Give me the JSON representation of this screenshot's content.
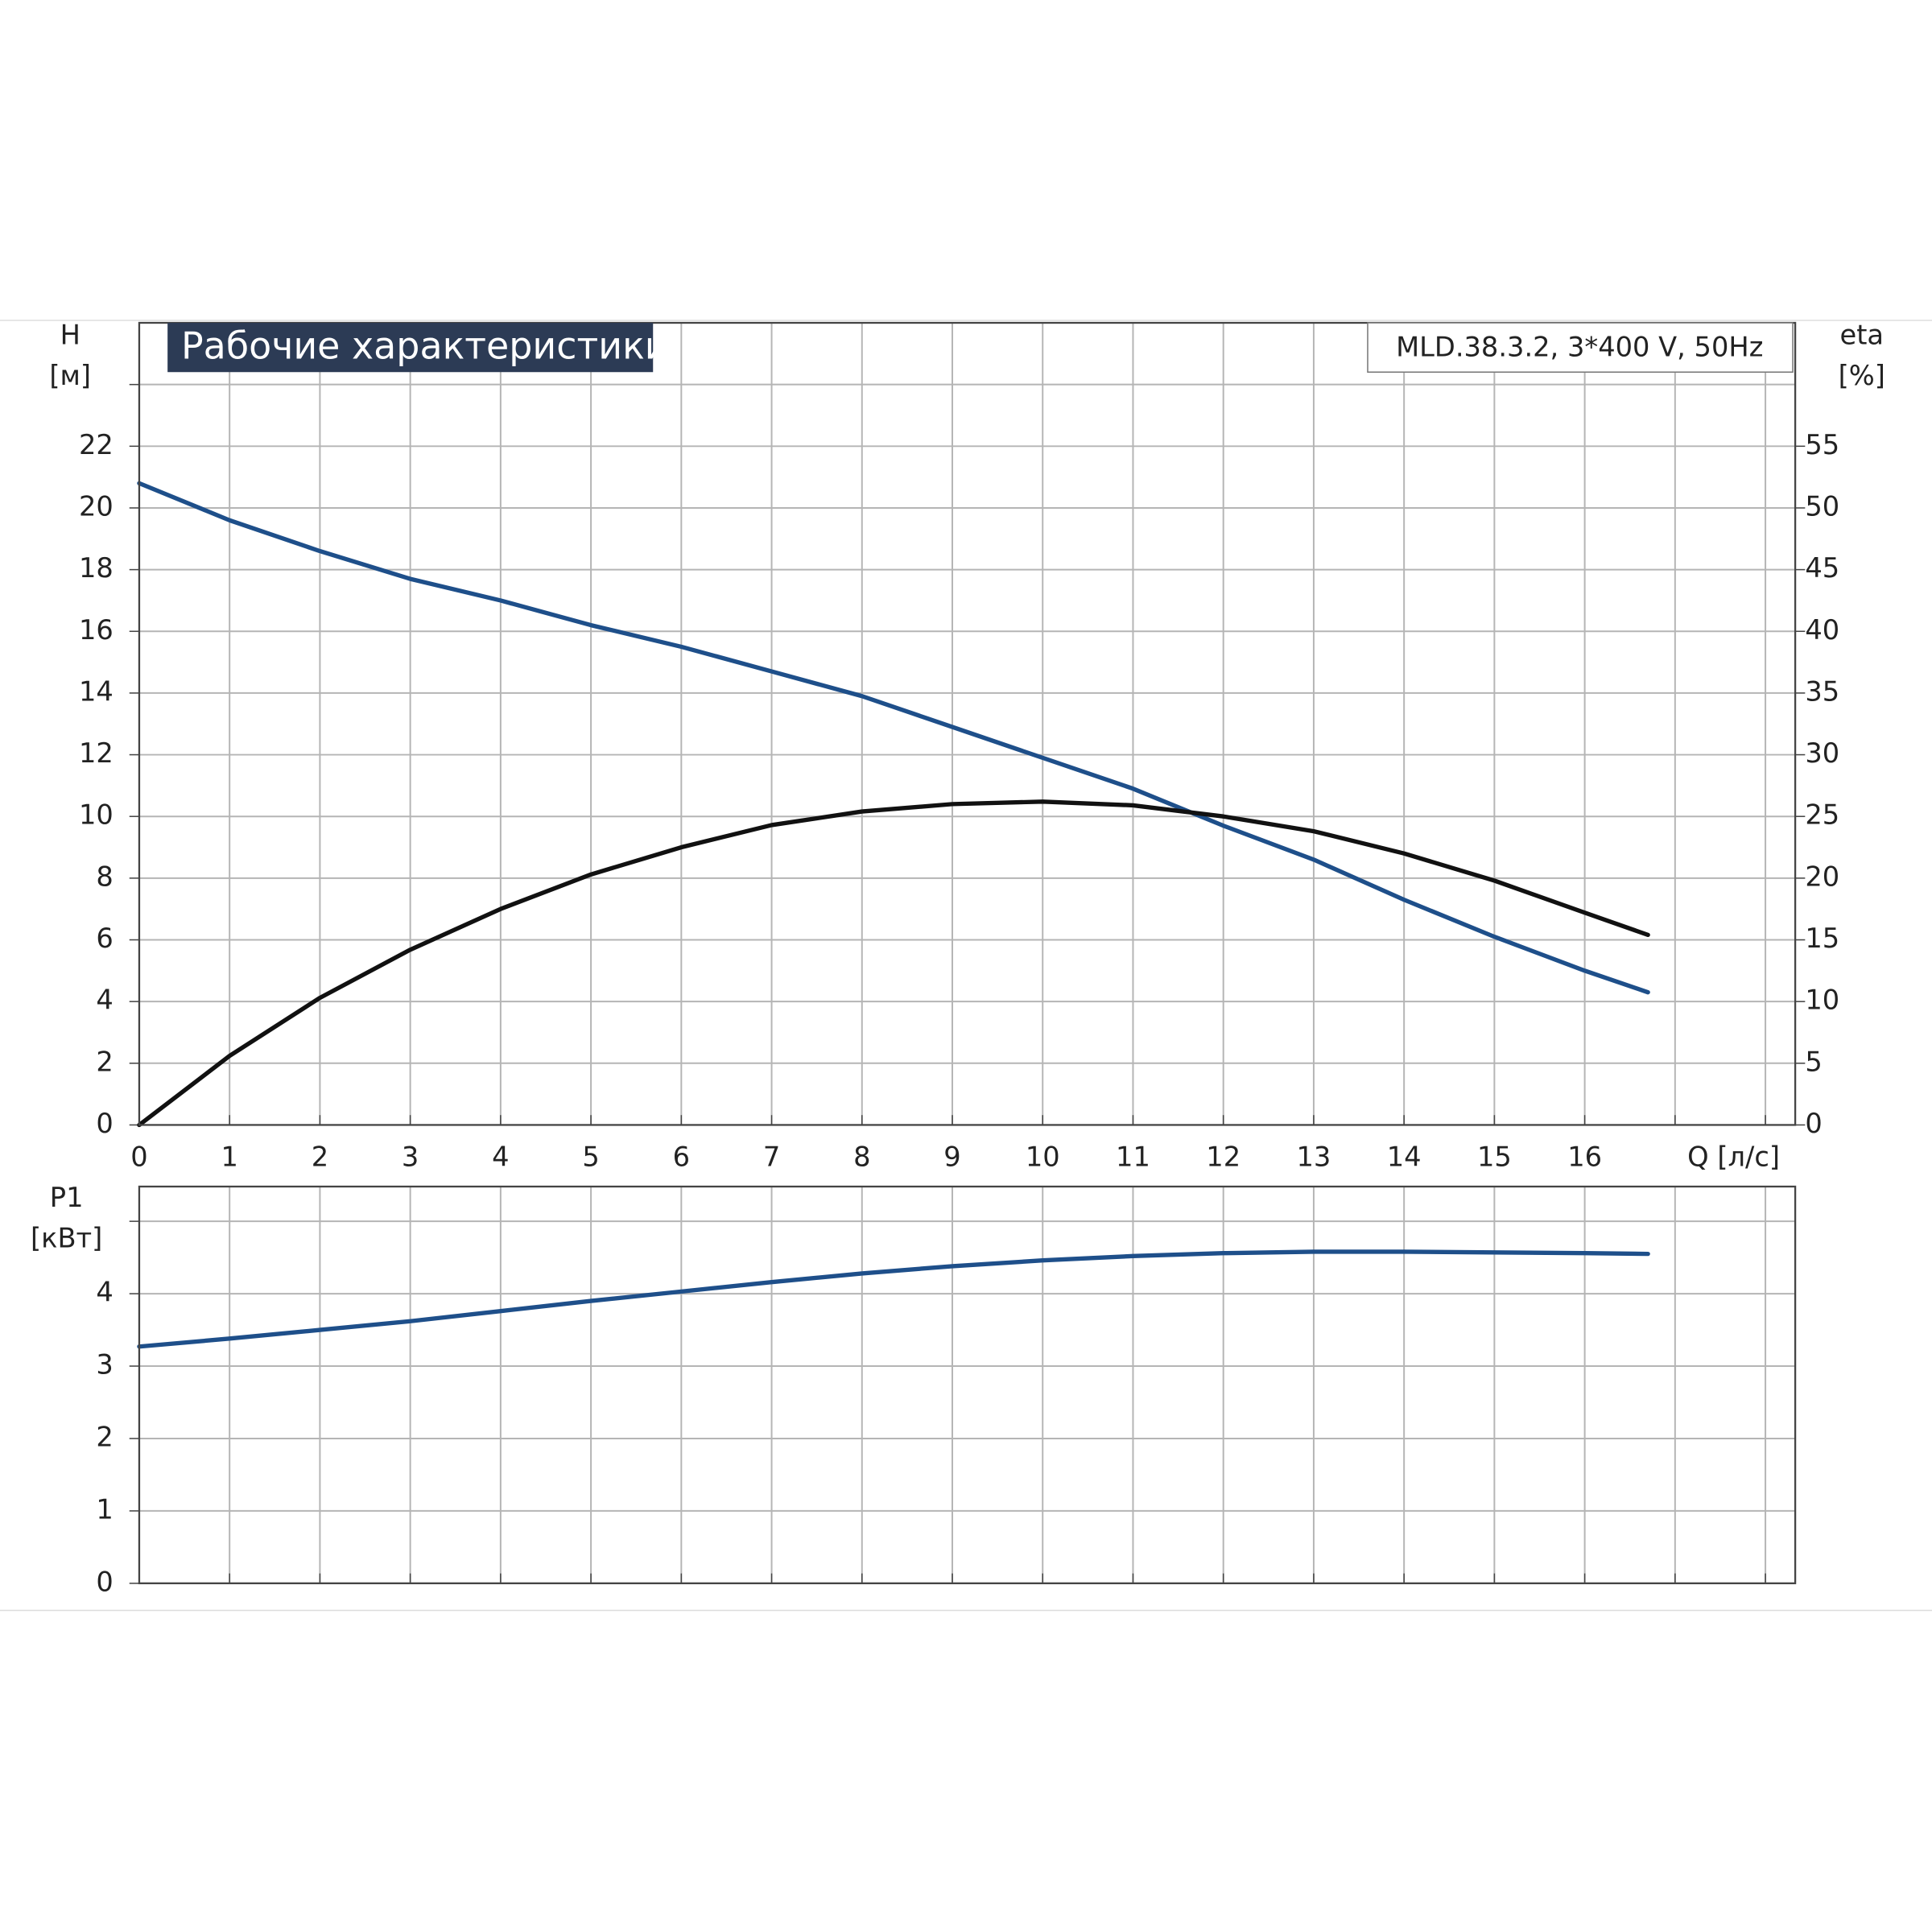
{
  "chart_data": [
    {
      "type": "line",
      "title": "Рабочие характеристики",
      "annotation": "MLD.38.3.2, 3*400 V, 50Hz",
      "ylabel": "H",
      "yunit": "[м]",
      "y2label": "eta",
      "y2unit": "[%]",
      "xlabel": "Q [л/с]",
      "grid": true,
      "x": [
        0,
        1,
        2,
        3,
        4,
        5,
        6,
        7,
        8,
        9,
        10,
        11,
        12,
        13,
        14,
        15,
        16,
        16.7
      ],
      "xlim": [
        0,
        18.33
      ],
      "xticks": [
        0,
        1,
        2,
        3,
        4,
        5,
        6,
        7,
        8,
        9,
        10,
        11,
        12,
        13,
        14,
        15,
        16,
        {
          "value": 17,
          "label": null
        },
        {
          "value": 18,
          "label": null
        }
      ],
      "ylim": [
        0,
        26
      ],
      "yticks": [
        0,
        2,
        4,
        6,
        8,
        10,
        12,
        14,
        16,
        18,
        20,
        22,
        {
          "value": 24,
          "label": null
        }
      ],
      "y2lim": [
        0,
        65
      ],
      "y2ticks": [
        0,
        5,
        10,
        15,
        20,
        25,
        30,
        35,
        40,
        45,
        50,
        55
      ],
      "series": [
        {
          "name": "H",
          "color": "#1e4f8a",
          "values": [
            20.8,
            19.6,
            18.6,
            17.7,
            17.0,
            16.2,
            15.5,
            14.7,
            13.9,
            12.9,
            11.9,
            10.9,
            9.7,
            8.6,
            7.3,
            6.1,
            5.0,
            4.3
          ]
        },
        {
          "name": "eta",
          "color": "#111111",
          "axis": "y2",
          "values": [
            0,
            5.6,
            10.3,
            14.2,
            17.5,
            20.3,
            22.5,
            24.3,
            25.4,
            26.0,
            26.2,
            25.9,
            25.0,
            23.8,
            22.0,
            19.8,
            17.2,
            15.4
          ]
        }
      ]
    },
    {
      "type": "line",
      "ylabel": "P1",
      "yunit": "[кВт]",
      "grid": true,
      "x": [
        0,
        1,
        2,
        3,
        4,
        5,
        6,
        7,
        8,
        9,
        10,
        11,
        12,
        13,
        14,
        15,
        16,
        16.7
      ],
      "xlim": [
        0,
        18.33
      ],
      "xticks": [
        {
          "value": 0,
          "label": null
        },
        {
          "value": 1,
          "label": null
        },
        {
          "value": 2,
          "label": null
        },
        {
          "value": 3,
          "label": null
        },
        {
          "value": 4,
          "label": null
        },
        {
          "value": 5,
          "label": null
        },
        {
          "value": 6,
          "label": null
        },
        {
          "value": 7,
          "label": null
        },
        {
          "value": 8,
          "label": null
        },
        {
          "value": 9,
          "label": null
        },
        {
          "value": 10,
          "label": null
        },
        {
          "value": 11,
          "label": null
        },
        {
          "value": 12,
          "label": null
        },
        {
          "value": 13,
          "label": null
        },
        {
          "value": 14,
          "label": null
        },
        {
          "value": 15,
          "label": null
        },
        {
          "value": 16,
          "label": null
        },
        {
          "value": 17,
          "label": null
        },
        {
          "value": 18,
          "label": null
        }
      ],
      "ylim": [
        0,
        5.48
      ],
      "yticks": [
        0,
        1,
        2,
        3,
        4,
        {
          "value": 5,
          "label": null
        }
      ],
      "series": [
        {
          "name": "P1",
          "color": "#1e4f8a",
          "values": [
            3.27,
            3.38,
            3.5,
            3.62,
            3.76,
            3.9,
            4.03,
            4.16,
            4.28,
            4.38,
            4.46,
            4.52,
            4.56,
            4.58,
            4.58,
            4.57,
            4.56,
            4.55
          ]
        }
      ]
    }
  ]
}
